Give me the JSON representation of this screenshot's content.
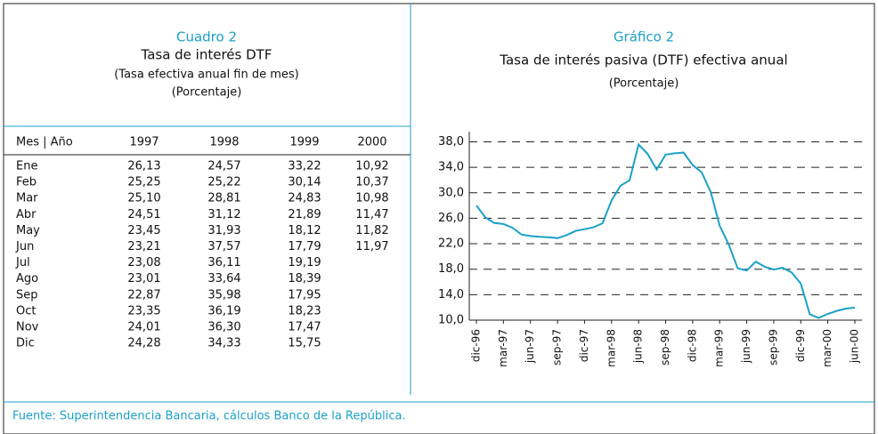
{
  "table": {
    "label": "Cuadro 2",
    "title": "Tasa de interés DTF",
    "subtitle": "(Tasa efectiva anual fin de mes)",
    "unit": "(Porcentaje)",
    "headers": [
      "Mes | Año",
      "1997",
      "1998",
      "1999",
      "2000"
    ],
    "rows": [
      [
        "Ene",
        "26,13",
        "24,57",
        "33,22",
        "10,92"
      ],
      [
        "Feb",
        "25,25",
        "25,22",
        "30,14",
        "10,37"
      ],
      [
        "Mar",
        "25,10",
        "28,81",
        "24,83",
        "10,98"
      ],
      [
        "Abr",
        "24,51",
        "31,12",
        "21,89",
        "11,47"
      ],
      [
        "May",
        "23,45",
        "31,93",
        "18,12",
        "11,82"
      ],
      [
        "Jun",
        "23,21",
        "37,57",
        "17,79",
        "11,97"
      ],
      [
        "Jul",
        "23,08",
        "36,11",
        "19,19"
      ],
      [
        "Ago",
        "23,01",
        "33,64",
        "18,39"
      ],
      [
        "Sep",
        "22,87",
        "35,98",
        "17,95"
      ],
      [
        "Oct",
        "23,35",
        "36,19",
        "18,23"
      ],
      [
        "Nov",
        "24,01",
        "36,30",
        "17,47"
      ],
      [
        "Dic",
        "24,28",
        "34,33",
        "15,75"
      ]
    ]
  },
  "chart_data": {
    "type": "line",
    "label": "Gráfico 2",
    "title": "Tasa de interés pasiva (DTF) efectiva anual",
    "subtitle": "(Porcentaje)",
    "categories": [
      "dic-96",
      null,
      null,
      "mar-97",
      null,
      null,
      "jun-97",
      null,
      null,
      "sep-97",
      null,
      null,
      "dic-97",
      null,
      null,
      "mar-98",
      null,
      null,
      "jun-98",
      null,
      null,
      "sep-98",
      null,
      null,
      "dic-98",
      null,
      null,
      "mar-99",
      null,
      null,
      "jun-99",
      null,
      null,
      "sep-99",
      null,
      null,
      "dic-99",
      null,
      null,
      "mar-00",
      null,
      null,
      "jun-00"
    ],
    "values": [
      28.0,
      26.13,
      25.25,
      25.1,
      24.51,
      23.45,
      23.21,
      23.08,
      23.01,
      22.87,
      23.35,
      24.01,
      24.28,
      24.57,
      25.22,
      28.81,
      31.12,
      31.93,
      37.57,
      36.11,
      33.64,
      35.98,
      36.19,
      36.3,
      34.33,
      33.22,
      30.14,
      24.83,
      21.89,
      18.12,
      17.79,
      19.19,
      18.39,
      17.95,
      18.23,
      17.47,
      15.75,
      10.92,
      10.37,
      10.98,
      11.47,
      11.82,
      11.97
    ],
    "color": "#1ba0c8",
    "ylim": [
      10,
      39.6
    ],
    "yticks": [
      {
        "value": 10,
        "label": "10,0"
      },
      {
        "value": 14,
        "label": "14,0"
      },
      {
        "value": 18,
        "label": "18,0"
      },
      {
        "value": 22,
        "label": "22,0"
      },
      {
        "value": 26,
        "label": "26,0"
      },
      {
        "value": 30,
        "label": "30,0"
      },
      {
        "value": 34,
        "label": "34,0"
      },
      {
        "value": 38,
        "label": "38,0"
      }
    ],
    "grid": true
  },
  "source": "Fuente: Superintendencia Bancaria, cálculos Banco de la República."
}
